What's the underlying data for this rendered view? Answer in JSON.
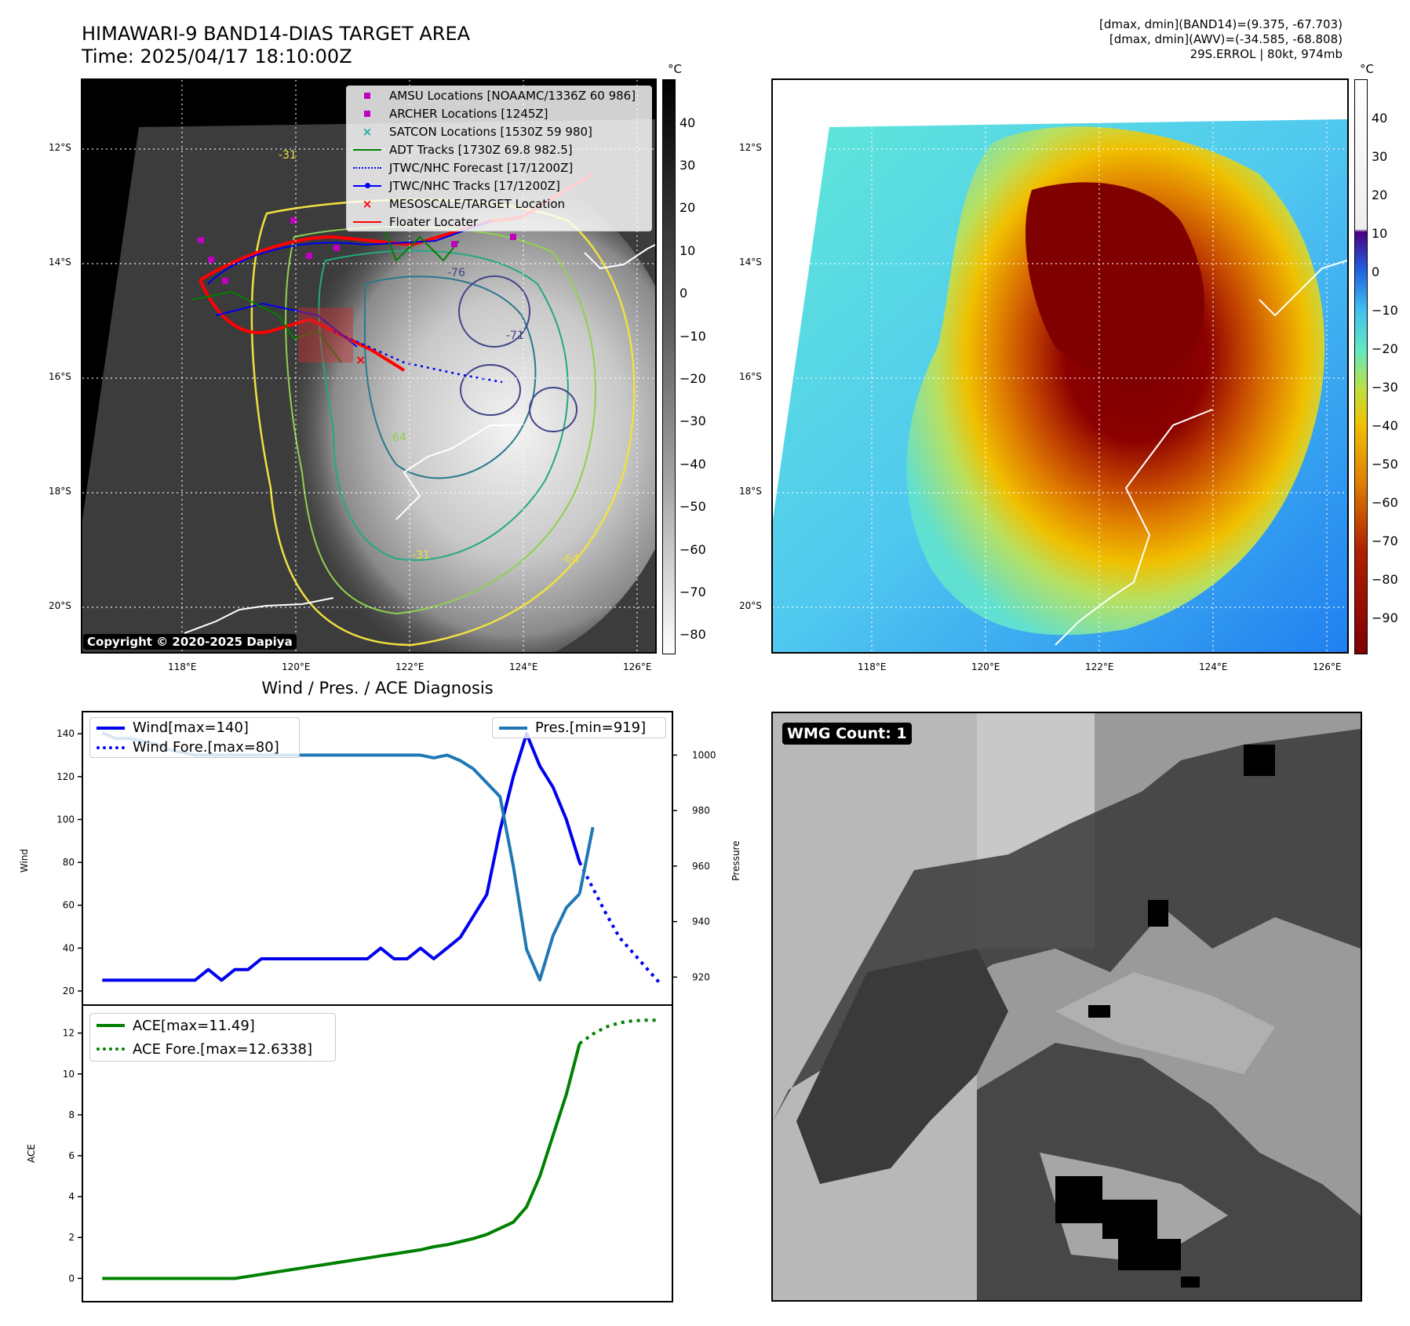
{
  "header": {
    "title_line1": "HIMAWARI-9 BAND14-DIAS TARGET AREA",
    "title_line2": "Time: 2025/04/17 18:10:00Z",
    "info_line1": "[dmax, dmin](BAND14)=(9.375, -67.703)",
    "info_line2": "[dmax, dmin](AWV)=(-34.585, -68.808)",
    "info_line3": "29S.ERROL | 80kt, 974mb"
  },
  "map_ir": {
    "lat_ticks": [
      "12°S",
      "14°S",
      "16°S",
      "18°S",
      "20°S"
    ],
    "lon_ticks": [
      "118°E",
      "120°E",
      "122°E",
      "124°E",
      "126°E"
    ],
    "copyright": "Copyright © 2020-2025 Dapiya",
    "legend": [
      {
        "label": "AMSU Locations [NOAAMC/1336Z 60 986]",
        "kind": "square",
        "color": "#c000c0"
      },
      {
        "label": "ARCHER Locations [1245Z]",
        "kind": "square",
        "color": "#c000c0"
      },
      {
        "label": "SATCON Locations [1530Z 59 980]",
        "kind": "x",
        "color": "#20b0a0"
      },
      {
        "label": "ADT Tracks [1730Z 69.8 982.5]",
        "kind": "line",
        "color": "#008000"
      },
      {
        "label": "JTWC/NHC Forecast [17/1200Z]",
        "kind": "dotted",
        "color": "#0000ff"
      },
      {
        "label": "JTWC/NHC Tracks [17/1200Z]",
        "kind": "dotline",
        "color": "#0000ff"
      },
      {
        "label": "MESOSCALE/TARGET Location",
        "kind": "x",
        "color": "#ff0000"
      },
      {
        "label": "Floater Locater",
        "kind": "line",
        "color": "#ff0000"
      }
    ],
    "contour_labels": [
      "-31",
      "-64",
      "-76",
      "-71",
      "-31",
      "-64"
    ],
    "colorbar": {
      "unit": "°C",
      "ticks": [
        "40",
        "30",
        "20",
        "10",
        "0",
        "−10",
        "−20",
        "−30",
        "−40",
        "−50",
        "−60",
        "−70",
        "−80"
      ]
    }
  },
  "map_color": {
    "lat_ticks": [
      "12°S",
      "14°S",
      "16°S",
      "18°S",
      "20°S"
    ],
    "lon_ticks": [
      "118°E",
      "120°E",
      "122°E",
      "124°E",
      "126°E"
    ],
    "colorbar": {
      "unit": "°C",
      "ticks": [
        "40",
        "30",
        "20",
        "10",
        "0",
        "−10",
        "−20",
        "−30",
        "−40",
        "−50",
        "−60",
        "−70",
        "−80",
        "−90"
      ]
    }
  },
  "wmg": {
    "badge": "WMG Count: 1"
  },
  "diagnosis": {
    "title": "Wind / Pres. / ACE Diagnosis"
  },
  "chart_data": [
    {
      "type": "line",
      "title": "Wind / Pres. / ACE Diagnosis",
      "ylabel": "Wind",
      "y2label": "Pressure",
      "ylim": [
        20,
        143
      ],
      "y2lim": [
        915,
        1010
      ],
      "yticks": [
        "20",
        "40",
        "60",
        "80",
        "100",
        "120",
        "140"
      ],
      "y2ticks": [
        "920",
        "940",
        "960",
        "980",
        "1000"
      ],
      "series": [
        {
          "name": "Wind[max=140]",
          "axis": "left",
          "style": "solid",
          "color": "#0000ee",
          "x": [
            0,
            1,
            2,
            3,
            4,
            5,
            6,
            7,
            8,
            9,
            10,
            11,
            12,
            13,
            14,
            15,
            16,
            17,
            18,
            19,
            20,
            21,
            22,
            23,
            24,
            25,
            26,
            27,
            28,
            29,
            30,
            31,
            32,
            33,
            34,
            35,
            36,
            37,
            38,
            39
          ],
          "values": [
            25,
            25,
            25,
            25,
            25,
            25,
            25,
            25,
            30,
            25,
            30,
            30,
            35,
            35,
            35,
            35,
            35,
            35,
            35,
            35,
            35,
            40,
            35,
            35,
            40,
            35,
            40,
            45,
            55,
            65,
            95,
            120,
            140,
            125,
            115,
            100,
            80,
            null,
            null,
            null
          ]
        },
        {
          "name": "Wind Fore.[max=80]",
          "axis": "left",
          "style": "dotted",
          "color": "#0000ee",
          "x": [
            36,
            37,
            38,
            39,
            40,
            41,
            42
          ],
          "values": [
            80,
            68,
            56,
            45,
            38,
            31,
            24
          ]
        },
        {
          "name": "Pres.[min=919]",
          "axis": "right",
          "style": "solid",
          "color": "#1f77b4",
          "x": [
            0,
            1,
            2,
            3,
            4,
            5,
            6,
            7,
            8,
            9,
            10,
            11,
            12,
            13,
            14,
            15,
            16,
            17,
            18,
            19,
            20,
            21,
            22,
            23,
            24,
            25,
            26,
            27,
            28,
            29,
            30,
            31,
            32,
            33,
            34,
            35,
            36
          ],
          "values": [
            1008,
            1006,
            1006,
            1005,
            1004,
            1002,
            1001,
            1000,
            1000,
            1000,
            1000,
            1000,
            1000,
            1000,
            1000,
            1000,
            1000,
            1000,
            1000,
            1000,
            1000,
            1000,
            1000,
            1000,
            1000,
            999,
            1000,
            998,
            995,
            990,
            985,
            960,
            930,
            919,
            935,
            945,
            950
          ]
        },
        {
          "name": "",
          "axis": "right",
          "style": "solid",
          "color": "#1f77b4",
          "x": [
            36,
            37
          ],
          "values": [
            950,
            974
          ]
        }
      ]
    },
    {
      "type": "line",
      "ylabel": "ACE",
      "ylim": [
        -0.6,
        12.6
      ],
      "yticks": [
        "0",
        "2",
        "4",
        "6",
        "8",
        "10",
        "12"
      ],
      "series": [
        {
          "name": "ACE[max=11.49]",
          "style": "solid",
          "color": "#008000",
          "x": [
            0,
            1,
            2,
            3,
            4,
            5,
            6,
            7,
            8,
            9,
            10,
            11,
            12,
            13,
            14,
            15,
            16,
            17,
            18,
            19,
            20,
            21,
            22,
            23,
            24,
            25,
            26,
            27,
            28,
            29,
            30,
            31,
            32,
            33,
            34,
            35,
            36
          ],
          "values": [
            0,
            0,
            0,
            0,
            0,
            0,
            0,
            0,
            0,
            0,
            0,
            0.1,
            0.2,
            0.3,
            0.4,
            0.5,
            0.6,
            0.7,
            0.8,
            0.9,
            1.0,
            1.1,
            1.2,
            1.3,
            1.4,
            1.55,
            1.65,
            1.8,
            1.95,
            2.15,
            2.45,
            2.75,
            3.5,
            5.0,
            7.0,
            9.0,
            11.49
          ]
        },
        {
          "name": "ACE Fore.[max=12.6338]",
          "style": "dotted",
          "color": "#008000",
          "x": [
            36,
            37,
            38,
            39,
            40,
            41,
            42
          ],
          "values": [
            11.49,
            11.95,
            12.3,
            12.5,
            12.6,
            12.63,
            12.63
          ]
        }
      ]
    }
  ]
}
